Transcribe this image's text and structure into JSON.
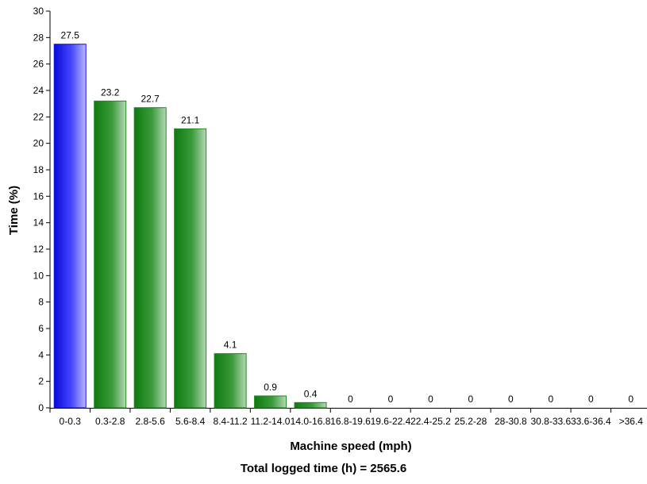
{
  "chart_data": {
    "type": "bar",
    "categories": [
      "0-0.3",
      "0.3-2.8",
      "2.8-5.6",
      "5.6-8.4",
      "8.4-11.2",
      "11.2-14.0",
      "14.0-16.8",
      "16.8-19.6",
      "19.6-22.4",
      "22.4-25.2",
      "25.2-28",
      "28-30.8",
      "30.8-33.6",
      "33.6-36.4",
      ">36.4"
    ],
    "values": [
      27.5,
      23.2,
      22.7,
      21.1,
      4.1,
      0.9,
      0.4,
      0,
      0,
      0,
      0,
      0,
      0,
      0,
      0
    ],
    "value_labels": [
      "27.5",
      "23.2",
      "22.7",
      "21.1",
      "4.1",
      "0.9",
      "0.4",
      "0",
      "0",
      "0",
      "0",
      "0",
      "0",
      "0",
      "0"
    ],
    "ylim": [
      0,
      30
    ],
    "yticks": [
      "0",
      "2",
      "4",
      "6",
      "8",
      "10",
      "12",
      "14",
      "16",
      "18",
      "20",
      "22",
      "24",
      "26",
      "28",
      "30"
    ],
    "xlabel": "Machine speed (mph)",
    "ylabel": "Time (%)",
    "grid": false,
    "colors": {
      "first_bar": "#1010ee",
      "other_bars": "#1e8a1e",
      "axis": "#000000"
    }
  },
  "footer": {
    "total_text": "Total logged time (h) = 2565.6"
  }
}
